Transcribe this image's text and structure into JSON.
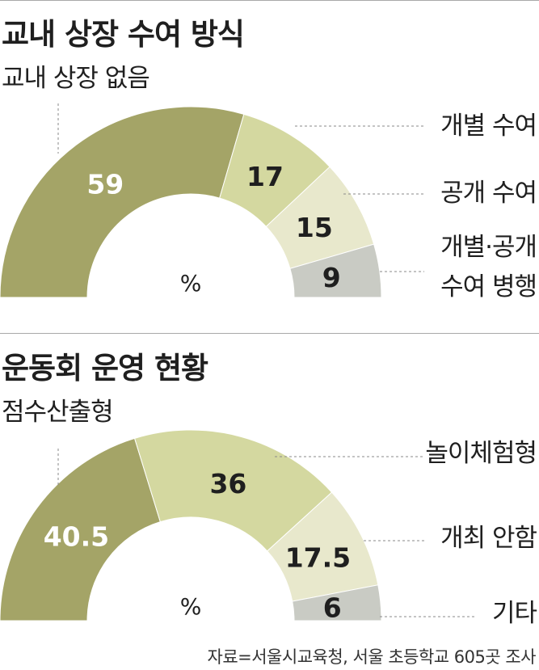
{
  "chart_data": [
    {
      "type": "pie",
      "title": "교내 상장 수여 방식",
      "unit_label": "%",
      "categories": [
        "교내 상장 없음",
        "개별 수여",
        "공개 수여",
        "개별·공개 수여 병행"
      ],
      "values": [
        59,
        17,
        15,
        9
      ],
      "value_labels": [
        "59",
        "17",
        "15",
        "9"
      ],
      "colors": [
        "#a4a467",
        "#d4d8a0",
        "#e8e8cc",
        "#c9cbc4"
      ],
      "label_lines": [
        [
          "교내 상장 없음"
        ],
        [
          "개별 수여"
        ],
        [
          "공개 수여"
        ],
        [
          "개별·공개",
          "수여 병행"
        ]
      ]
    },
    {
      "type": "pie",
      "title": "운동회 운영 현황",
      "unit_label": "%",
      "categories": [
        "점수산출형",
        "놀이체험형",
        "개최 안함",
        "기타"
      ],
      "values": [
        40.5,
        36,
        17.5,
        6
      ],
      "value_labels": [
        "40.5",
        "36",
        "17.5",
        "6"
      ],
      "colors": [
        "#a4a467",
        "#d4d8a0",
        "#e8e8cc",
        "#c9cbc4"
      ],
      "label_lines": [
        [
          "점수산출형"
        ],
        [
          "놀이체험형"
        ],
        [
          "개최 안함"
        ],
        [
          "기타"
        ]
      ]
    }
  ],
  "source": "자료=서울시교육청, 서울 초등학교 605곳 조사"
}
